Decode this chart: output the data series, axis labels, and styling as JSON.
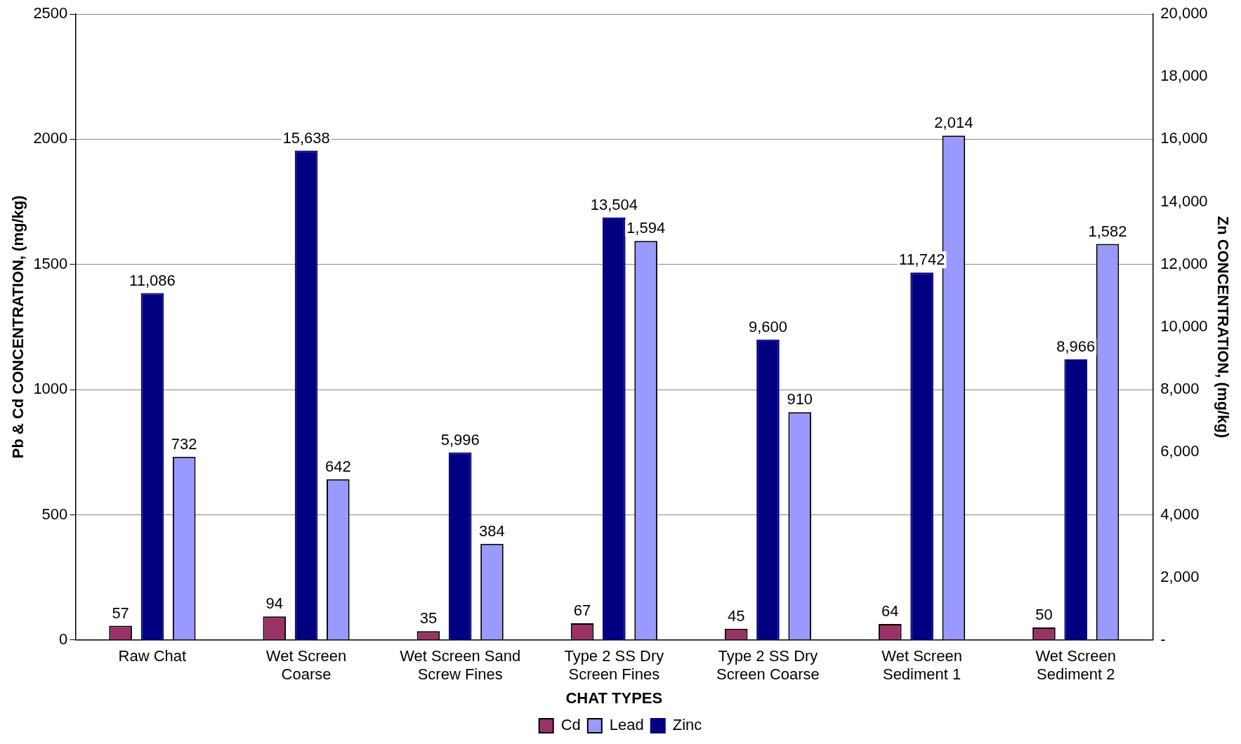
{
  "chart_data": {
    "type": "bar",
    "xlabel": "CHAT TYPES",
    "ylabel": "Pb & Cd CONCENTRATION, (mg/kg)",
    "y2label": "Zn CONCENTRATION, (mg/kg)",
    "categories": [
      "Raw Chat",
      "Wet Screen Coarse",
      "Wet Screen Sand Screw Fines",
      "Type 2 SS Dry Screen Fines",
      "Type 2 SS Dry Screen Coarse",
      "Wet Screen Sediment 1",
      "Wet Screen Sediment 2"
    ],
    "series": [
      {
        "name": "Cd",
        "color": "#993366",
        "values": [
          57,
          94,
          35,
          67,
          45,
          64,
          50
        ],
        "value_labels": [
          "57",
          "94",
          "35",
          "67",
          "45",
          "64",
          "50"
        ]
      },
      {
        "name": "Lead",
        "color": "#9999ff",
        "values": [
          732,
          642,
          384,
          1594,
          910,
          2014,
          1582
        ],
        "value_labels": [
          "732",
          "642",
          "384",
          "1,594",
          "910",
          "2,014",
          "1,582"
        ]
      },
      {
        "name": "Zinc",
        "color": "#000080",
        "axis": "y2",
        "values": [
          11086,
          15638,
          5996,
          13504,
          9600,
          11742,
          8966
        ],
        "value_labels": [
          "11,086",
          "15,638",
          "5,996",
          "13,504",
          "9,600",
          "11,742",
          "8,966"
        ]
      }
    ],
    "ylim": [
      0,
      2500
    ],
    "yticks": [
      0,
      500,
      1000,
      1500,
      2000,
      2500
    ],
    "y2lim": [
      0,
      20000
    ],
    "y2ticks": [
      {
        "value": 0,
        "label": "-"
      },
      {
        "value": 2000,
        "label": "2,000"
      },
      {
        "value": 4000,
        "label": "4,000"
      },
      {
        "value": 6000,
        "label": "6,000"
      },
      {
        "value": 8000,
        "label": "8,000"
      },
      {
        "value": 10000,
        "label": "10,000"
      },
      {
        "value": 12000,
        "label": "12,000"
      },
      {
        "value": 14000,
        "label": "14,000"
      },
      {
        "value": 16000,
        "label": "16,000"
      },
      {
        "value": 18000,
        "label": "18,000"
      },
      {
        "value": 20000,
        "label": "20,000"
      }
    ],
    "grid": "y",
    "legend": "bottom"
  }
}
